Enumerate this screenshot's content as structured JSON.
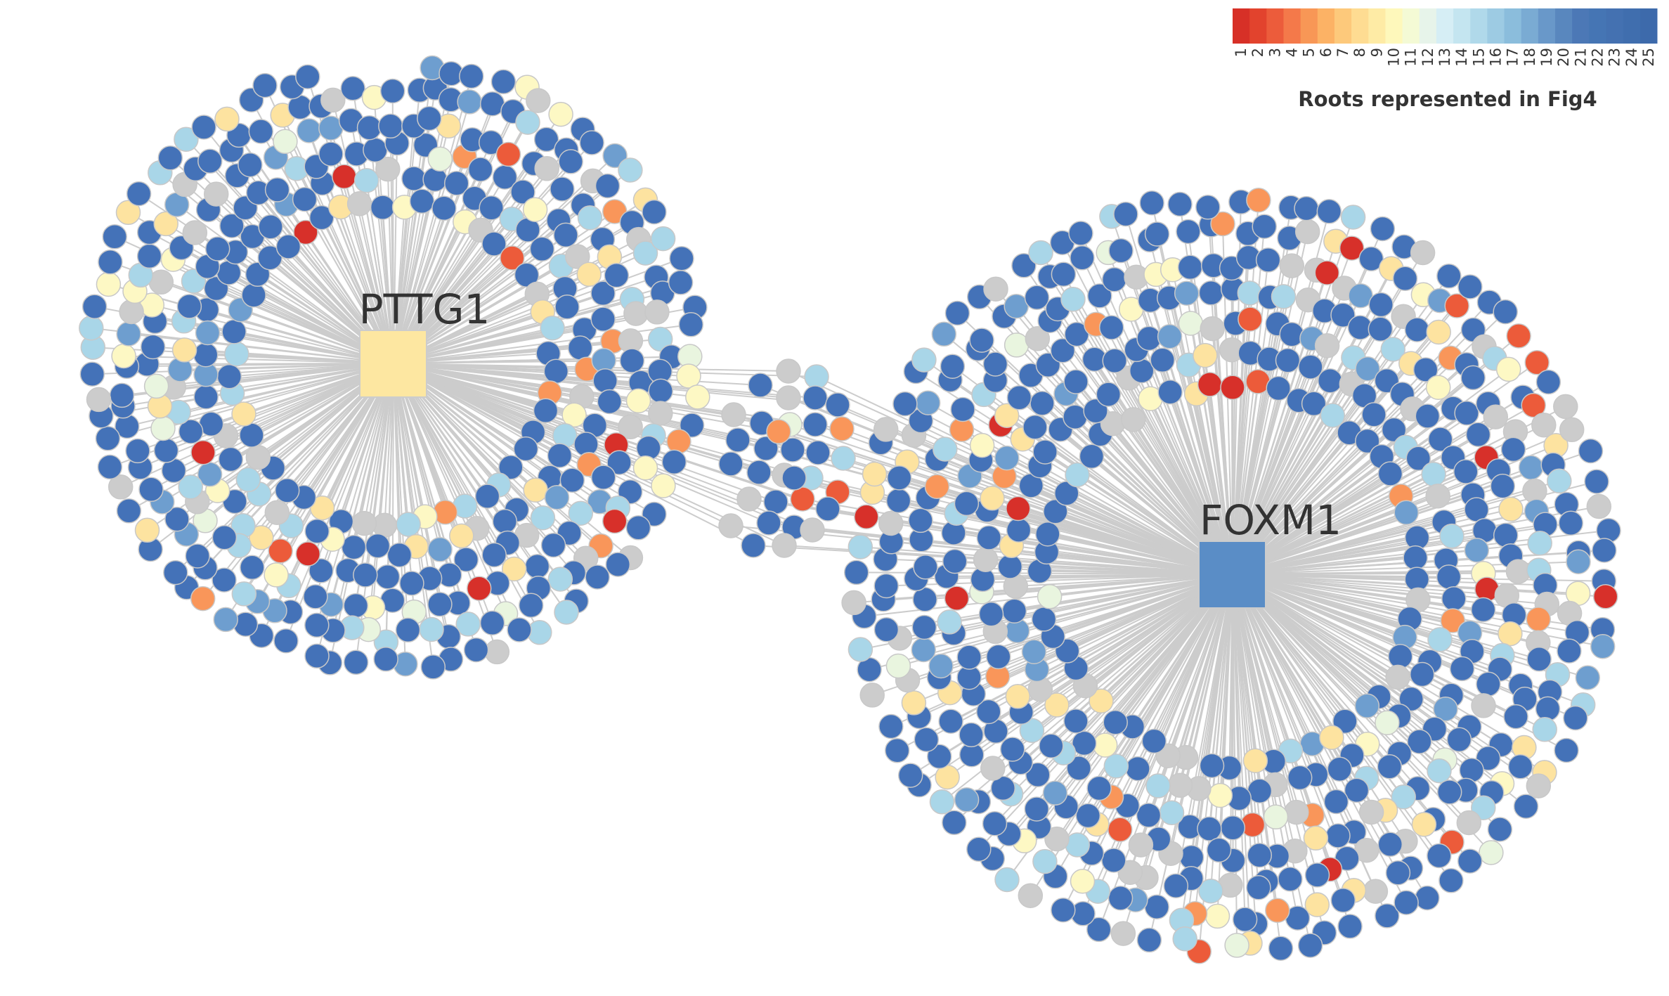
{
  "hubs": [
    {
      "id": "pttg1",
      "label": "PTTG1",
      "color": "#fde7a1"
    },
    {
      "id": "foxm1",
      "label": "FOXM1",
      "color": "#5a8dc6"
    }
  ],
  "legend": {
    "title": "Roots represented in Fig4",
    "ticks": [
      "1",
      "2",
      "3",
      "4",
      "5",
      "6",
      "7",
      "8",
      "9",
      "10",
      "11",
      "12",
      "13",
      "14",
      "15",
      "16",
      "17",
      "18",
      "19",
      "20",
      "21",
      "22",
      "23",
      "24",
      "25"
    ],
    "colors": [
      "#d73027",
      "#e2432d",
      "#ec5c3b",
      "#f4794a",
      "#f89756",
      "#fcb265",
      "#fdc97b",
      "#fedc92",
      "#feeba5",
      "#fef8bb",
      "#f4fad5",
      "#e7f4ea",
      "#d6eef5",
      "#c4e5f0",
      "#b0d9ea",
      "#9dcbe3",
      "#8bbddc",
      "#7aabd3",
      "#6998c9",
      "#5987be",
      "#4c78b6",
      "#4575b4",
      "#4471b1",
      "#406eae",
      "#3d6aab"
    ]
  },
  "palette": {
    "dark_blue": "#4472b8",
    "mid_blue": "#6e9ecf",
    "light_blue": "#a9d6e8",
    "pale_blue": "#d3ebf3",
    "pale_green": "#e9f5df",
    "pale_yellow": "#fdf8c4",
    "yellow": "#fde3a0",
    "orange": "#f9965a",
    "red_orange": "#ec5b3a",
    "red": "#d7302a",
    "grey": "#cccccc",
    "edge": "#cccccc"
  }
}
